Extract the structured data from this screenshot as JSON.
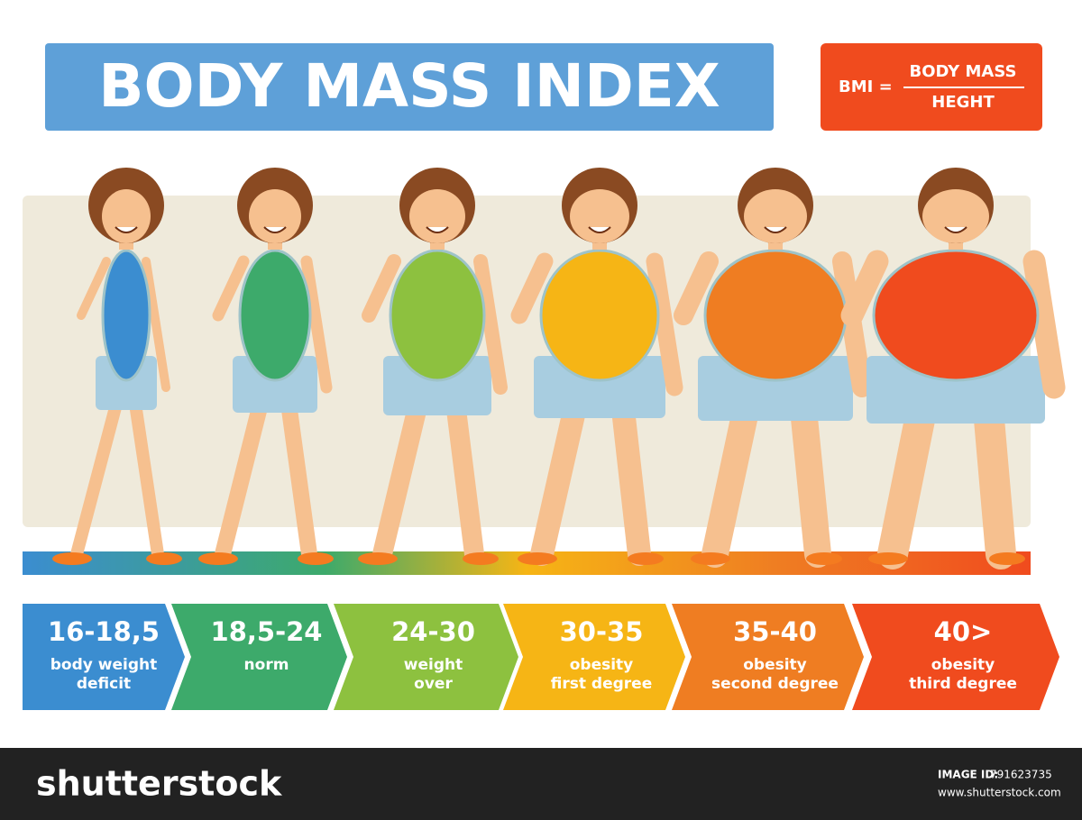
{
  "header": {
    "title": "BODY MASS INDEX",
    "formula": {
      "prefix": "BMI =",
      "numerator": "BODY MASS",
      "denominator": "HEGHT"
    }
  },
  "stages": [
    {
      "range": "16-18,5",
      "label": [
        "body weight",
        "deficit"
      ],
      "color": "#3b8dd0"
    },
    {
      "range": "18,5-24",
      "label": [
        "norm"
      ],
      "color": "#3daa6b"
    },
    {
      "range": "24-30",
      "label": [
        "weight",
        "over"
      ],
      "color": "#8dc13f"
    },
    {
      "range": "30-35",
      "label": [
        "obesity",
        "first degree"
      ],
      "color": "#f6b515"
    },
    {
      "range": "35-40",
      "label": [
        "obesity",
        "second degree"
      ],
      "color": "#ef7d22"
    },
    {
      "range": "40>",
      "label": [
        "obesity",
        "third degree"
      ],
      "color": "#f04b1e"
    }
  ],
  "footer": {
    "logo": "shutterstock",
    "id_label": "IMAGE ID:",
    "id": "791623735",
    "url": "www.shutterstock.com"
  }
}
